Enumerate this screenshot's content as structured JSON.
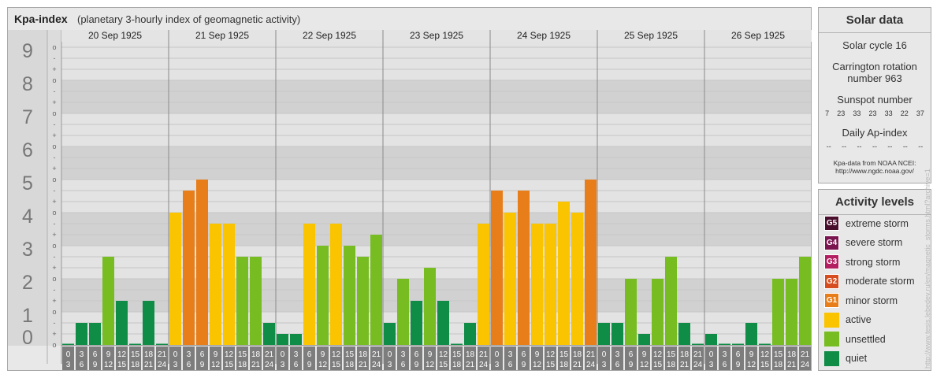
{
  "header": {
    "title": "Kpa-index",
    "subtitle": "(planetary 3-hourly index of geomagnetic activity)"
  },
  "chart_data": {
    "type": "bar",
    "days": [
      "20 Sep 1925",
      "21 Sep 1925",
      "22 Sep 1925",
      "23 Sep 1925",
      "24 Sep 1925",
      "25 Sep 1925",
      "26 Sep 1925"
    ],
    "y_ticks": [
      "0",
      "1",
      "2",
      "3",
      "4",
      "5",
      "6",
      "7",
      "8",
      "9"
    ],
    "minor_ticks": [
      "o",
      "+",
      "-"
    ],
    "interval_start": [
      "0",
      "3",
      "6",
      "9",
      "12",
      "15",
      "18",
      "21"
    ],
    "interval_end": [
      "3",
      "6",
      "9",
      "12",
      "15",
      "18",
      "21",
      "24"
    ],
    "ylim": [
      0,
      9
    ],
    "values": [
      [
        0.0,
        0.667,
        0.667,
        2.667,
        1.333,
        0.0,
        1.333,
        0.0
      ],
      [
        4.0,
        4.667,
        5.0,
        3.667,
        3.667,
        2.667,
        2.667,
        0.667
      ],
      [
        0.333,
        0.333,
        3.667,
        3.0,
        3.667,
        3.0,
        2.667,
        3.333
      ],
      [
        0.667,
        2.0,
        1.333,
        2.333,
        1.333,
        0.0,
        0.667,
        3.667
      ],
      [
        4.667,
        4.0,
        4.667,
        3.667,
        3.667,
        4.333,
        4.0,
        5.0
      ],
      [
        0.667,
        0.667,
        2.0,
        0.333,
        2.0,
        2.667,
        0.667,
        0.0
      ],
      [
        0.333,
        0.0,
        0.0,
        0.667,
        0.0,
        2.0,
        2.0,
        2.667
      ]
    ],
    "colors": {
      "quiet": "#0f8c46",
      "unsettled": "#77bd21",
      "active": "#fac400",
      "minor": "#e87e1a",
      "moderate": "#d64e1f",
      "strong": "#b41f62",
      "severe": "#7a1550",
      "extreme": "#4a0f2c"
    }
  },
  "solar": {
    "title": "Solar data",
    "solar_cycle": "Solar cycle 16",
    "carrington_1": "Carrington rotation",
    "carrington_2": "number 963",
    "sunspot_label": "Sunspot number",
    "sunspot_values": [
      "7",
      "23",
      "33",
      "23",
      "33",
      "22",
      "37"
    ],
    "ap_label": "Daily Ap-index",
    "ap_values": [
      "--",
      "--",
      "--",
      "--",
      "--",
      "--",
      "--"
    ],
    "source_1": "Kpa-data from NOAA NCEI:",
    "source_2": "http://www.ngdc.noaa.gov/"
  },
  "levels": {
    "title": "Activity levels",
    "items": [
      {
        "code": "G5",
        "label": "extreme storm",
        "color": "#4a0f2c"
      },
      {
        "code": "G4",
        "label": "severe storm",
        "color": "#7a1550"
      },
      {
        "code": "G3",
        "label": "strong storm",
        "color": "#b41f62"
      },
      {
        "code": "G2",
        "label": "moderate storm",
        "color": "#d64e1f"
      },
      {
        "code": "G1",
        "label": "minor storm",
        "color": "#e87e1a"
      },
      {
        "code": "",
        "label": "active",
        "color": "#fac400"
      },
      {
        "code": "",
        "label": "unsettled",
        "color": "#77bd21"
      },
      {
        "code": "",
        "label": "quiet",
        "color": "#0f8c46"
      }
    ]
  },
  "watermark": "http://www.tesis.lebedev.ru/en/magnetic_storms.html?archive=1"
}
